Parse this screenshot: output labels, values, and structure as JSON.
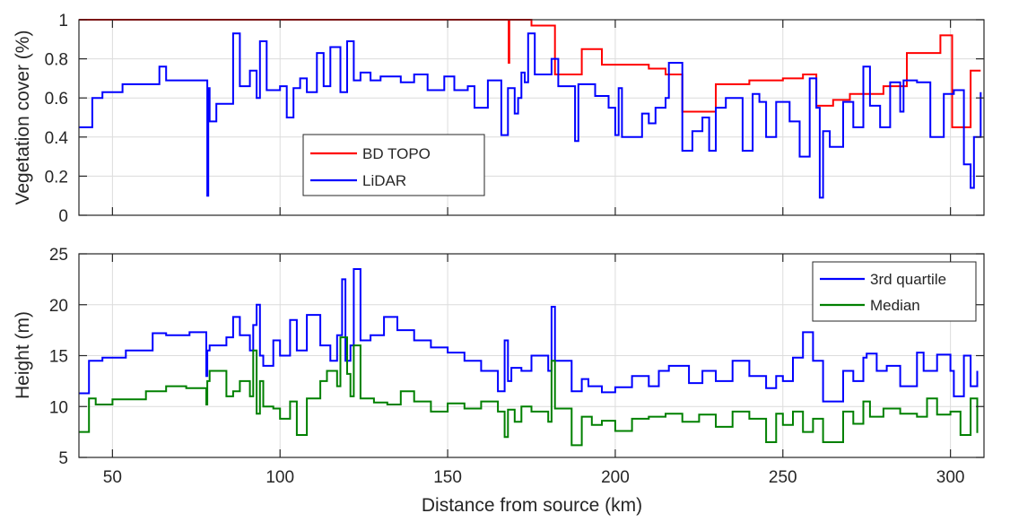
{
  "colors": {
    "bd_topo": "#ff0000",
    "lidar": "#0000ff",
    "third_quartile": "#0000ff",
    "median": "#008000",
    "grid": "#dcdcdc",
    "axis": "#262626"
  },
  "chart_data": [
    {
      "type": "line",
      "step": true,
      "ylabel": "Vegetation cover (%)",
      "xlim": [
        40,
        310
      ],
      "ylim": [
        0,
        1
      ],
      "x_ticks": [
        50,
        100,
        150,
        200,
        250,
        300
      ],
      "y_ticks": [
        0,
        0.2,
        0.4,
        0.6,
        0.8,
        1
      ],
      "y_tick_labels": [
        "0",
        "0.2",
        "0.4",
        "0.6",
        "0.8",
        "1"
      ],
      "grid": true,
      "legend_position": "center-left",
      "series": [
        {
          "name": "BD TOPO",
          "color": "#ff0000",
          "x": [
            40,
            168,
            168.2,
            168.4,
            173,
            175,
            181,
            182,
            186,
            190,
            196,
            200,
            210,
            215,
            220,
            230,
            240,
            247,
            250,
            256,
            260,
            265,
            270,
            273,
            280,
            287,
            297,
            300,
            300.5,
            303,
            306,
            309
          ],
          "y": [
            1,
            1,
            0.78,
            1,
            1,
            0.97,
            0.97,
            0.72,
            0.72,
            0.85,
            0.77,
            0.77,
            0.75,
            0.72,
            0.53,
            0.67,
            0.69,
            0.69,
            0.7,
            0.72,
            0.56,
            0.59,
            0.62,
            0.62,
            0.66,
            0.83,
            0.92,
            0.92,
            0.45,
            0.45,
            0.74,
            0.74
          ]
        },
        {
          "name": "LiDAR",
          "color": "#0000ff",
          "x": [
            40,
            44,
            47,
            53,
            64,
            66,
            78,
            78.3,
            78.6,
            79,
            81,
            86,
            88,
            91,
            93,
            94,
            96,
            100,
            102,
            104,
            106,
            108,
            111,
            113,
            115,
            118,
            120,
            122,
            124,
            127,
            130,
            136,
            140,
            144,
            149,
            152,
            156,
            158,
            162,
            166,
            168,
            170,
            171,
            172,
            173,
            174,
            176,
            181,
            183,
            188,
            189,
            194,
            198,
            200,
            201,
            202,
            208,
            210,
            212,
            215,
            216,
            220,
            223,
            226,
            228,
            230,
            233,
            238,
            241,
            243,
            245,
            248,
            252,
            255,
            258,
            260,
            261,
            262,
            264,
            268,
            271,
            274,
            276,
            279,
            282,
            285,
            286,
            290,
            294,
            298,
            301,
            304,
            306,
            307,
            309
          ],
          "y": [
            0.45,
            0.6,
            0.63,
            0.67,
            0.76,
            0.69,
            0.69,
            0.1,
            0.65,
            0.48,
            0.57,
            0.93,
            0.66,
            0.74,
            0.6,
            0.89,
            0.64,
            0.66,
            0.5,
            0.65,
            0.7,
            0.63,
            0.83,
            0.66,
            0.86,
            0.63,
            0.89,
            0.69,
            0.73,
            0.69,
            0.71,
            0.68,
            0.72,
            0.64,
            0.71,
            0.64,
            0.66,
            0.55,
            0.69,
            0.41,
            0.65,
            0.52,
            0.6,
            0.73,
            0.68,
            0.93,
            0.72,
            0.8,
            0.66,
            0.38,
            0.67,
            0.61,
            0.55,
            0.41,
            0.65,
            0.4,
            0.52,
            0.47,
            0.55,
            0.6,
            0.78,
            0.33,
            0.43,
            0.5,
            0.33,
            0.55,
            0.6,
            0.33,
            0.62,
            0.58,
            0.4,
            0.58,
            0.48,
            0.3,
            0.7,
            0.55,
            0.09,
            0.43,
            0.35,
            0.58,
            0.45,
            0.76,
            0.56,
            0.45,
            0.68,
            0.53,
            0.69,
            0.68,
            0.4,
            0.62,
            0.64,
            0.26,
            0.14,
            0.4,
            0.63
          ]
        }
      ]
    },
    {
      "type": "line",
      "step": true,
      "xlabel": "Distance from source (km)",
      "ylabel": "Height (m)",
      "xlim": [
        40,
        310
      ],
      "ylim": [
        5,
        25
      ],
      "x_ticks": [
        50,
        100,
        150,
        200,
        250,
        300
      ],
      "x_tick_labels": [
        "50",
        "100",
        "150",
        "200",
        "250",
        "300"
      ],
      "y_ticks": [
        5,
        10,
        15,
        20,
        25
      ],
      "y_tick_labels": [
        "5",
        "10",
        "15",
        "20",
        "25"
      ],
      "grid": true,
      "legend_position": "top-right",
      "series": [
        {
          "name": "3rd quartile",
          "color": "#0000ff",
          "x": [
            40,
            43,
            47,
            54,
            62,
            66,
            73,
            78,
            78.3,
            79,
            84,
            86,
            88,
            91,
            92,
            93,
            94,
            95,
            98,
            100,
            103,
            105,
            108,
            112,
            115,
            117,
            118.5,
            119.5,
            121,
            122,
            124,
            127,
            131,
            135,
            140,
            145,
            150,
            155,
            160,
            165,
            167,
            168,
            169,
            172,
            175,
            180,
            181,
            182,
            187,
            190,
            192,
            196,
            200,
            205,
            210,
            213,
            216,
            222,
            226,
            230,
            235,
            240,
            245,
            248,
            250,
            253,
            256,
            259,
            262,
            268,
            271,
            274,
            275,
            278,
            281,
            285,
            290,
            292,
            296,
            300,
            301,
            304,
            306,
            308
          ],
          "y": [
            11.3,
            14.5,
            14.8,
            15.5,
            17.2,
            17.0,
            17.3,
            13.0,
            15.5,
            16.0,
            16.8,
            18.8,
            17.0,
            15.5,
            18.0,
            20.0,
            15.0,
            14.0,
            16.5,
            15.0,
            18.5,
            15.5,
            19.0,
            16.0,
            14.5,
            17.0,
            22.5,
            14.5,
            16.0,
            23.5,
            16.5,
            17.0,
            18.8,
            17.5,
            16.5,
            15.8,
            15.3,
            14.5,
            13.5,
            11.5,
            16.5,
            12.5,
            13.8,
            13.5,
            15.0,
            13.5,
            19.8,
            14.5,
            11.5,
            12.7,
            12.0,
            11.4,
            11.9,
            13.0,
            12.0,
            13.5,
            14.0,
            12.3,
            13.5,
            12.5,
            14.5,
            13.0,
            11.8,
            13.0,
            12.5,
            14.8,
            17.3,
            14.5,
            10.5,
            13.5,
            12.5,
            14.8,
            15.2,
            13.5,
            14.0,
            12.0,
            15.3,
            13.5,
            15.1,
            13.5,
            11.0,
            15.0,
            12.0,
            13.5
          ]
        },
        {
          "name": "Median",
          "color": "#008000",
          "x": [
            40,
            43,
            45,
            50,
            60,
            66,
            72,
            78,
            78.3,
            79,
            84,
            86,
            88,
            91,
            92,
            93,
            94,
            95,
            98,
            100,
            103,
            105,
            108,
            112,
            114,
            117,
            118,
            120,
            121,
            122,
            124,
            128,
            132,
            136,
            140,
            145,
            150,
            155,
            160,
            165,
            167,
            168,
            170,
            172,
            175,
            180,
            181,
            182,
            187,
            190,
            193,
            196,
            200,
            205,
            210,
            215,
            220,
            225,
            230,
            235,
            240,
            245,
            248,
            250,
            253,
            256,
            259,
            262,
            268,
            271,
            274,
            276,
            280,
            285,
            290,
            293,
            296,
            300,
            303,
            306,
            308
          ],
          "y": [
            7.5,
            10.8,
            10.2,
            10.7,
            11.5,
            12.0,
            11.8,
            10.2,
            12.5,
            13.5,
            11.0,
            11.5,
            12.5,
            11.0,
            15.5,
            9.3,
            12.5,
            10.0,
            9.8,
            8.8,
            10.5,
            7.2,
            10.8,
            12.5,
            13.5,
            12.0,
            16.8,
            13.2,
            11.0,
            16.0,
            10.8,
            10.4,
            10.2,
            11.5,
            10.5,
            9.5,
            10.3,
            9.8,
            10.5,
            9.5,
            7.0,
            9.7,
            8.5,
            10.0,
            9.5,
            8.5,
            14.5,
            9.8,
            6.2,
            9.0,
            8.2,
            8.6,
            7.6,
            8.8,
            9.0,
            9.3,
            8.5,
            9.2,
            8.0,
            9.5,
            8.8,
            6.5,
            9.3,
            8.2,
            9.5,
            7.5,
            8.8,
            6.5,
            9.5,
            8.3,
            10.5,
            9.0,
            9.8,
            9.3,
            9.0,
            10.8,
            9.2,
            9.5,
            7.2,
            10.8,
            7.4
          ]
        }
      ]
    }
  ]
}
